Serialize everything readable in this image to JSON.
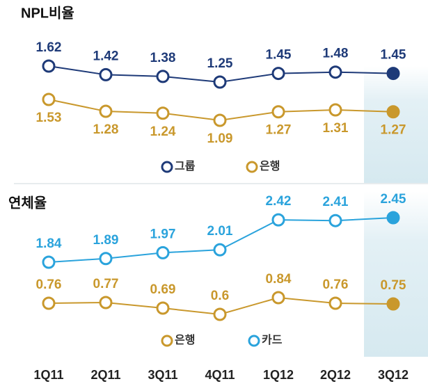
{
  "chart_data": [
    {
      "type": "line",
      "title": "NPL비율",
      "categories": [
        "1Q11",
        "2Q11",
        "3Q11",
        "4Q11",
        "1Q12",
        "2Q12",
        "3Q12"
      ],
      "series": [
        {
          "name": "그룹",
          "color": "#1e3a78",
          "label_position": "above",
          "values": [
            1.62,
            1.42,
            1.38,
            1.25,
            1.45,
            1.48,
            1.45
          ]
        },
        {
          "name": "은행",
          "color": "#c9982c",
          "label_position": "below",
          "values": [
            1.53,
            1.28,
            1.24,
            1.09,
            1.27,
            1.31,
            1.27
          ]
        }
      ]
    },
    {
      "type": "line",
      "title": "연체율",
      "categories": [
        "1Q11",
        "2Q11",
        "3Q11",
        "4Q11",
        "1Q12",
        "2Q12",
        "3Q12"
      ],
      "series": [
        {
          "name": "은행",
          "color": "#c9982c",
          "label_position": "above",
          "values": [
            0.76,
            0.77,
            0.69,
            0.6,
            0.84,
            0.76,
            0.75
          ]
        },
        {
          "name": "카드",
          "color": "#2aa3dc",
          "label_position": "above",
          "values": [
            1.84,
            1.89,
            1.97,
            2.01,
            2.42,
            2.41,
            2.45
          ]
        }
      ]
    }
  ]
}
